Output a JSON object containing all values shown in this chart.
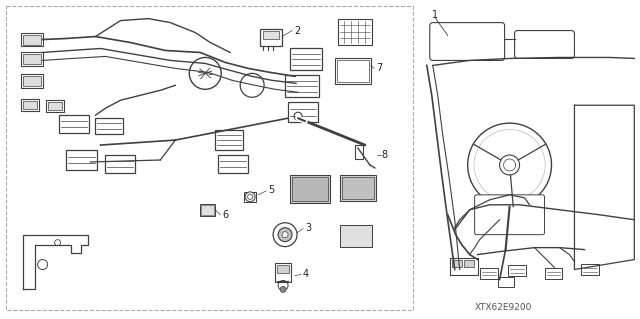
{
  "bg_color": "#ffffff",
  "line_color": "#404040",
  "text_color": "#222222",
  "diagram_code": "XTX62E9200",
  "fig_width": 6.4,
  "fig_height": 3.19,
  "dpi": 100
}
